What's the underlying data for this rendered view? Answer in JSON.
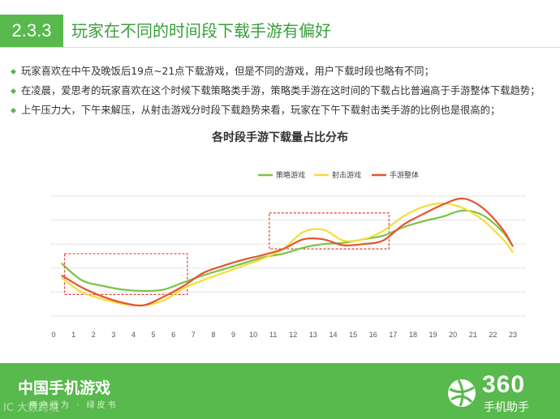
{
  "header": {
    "section_number": "2.3.3",
    "title": "玩家在不同的时间段下载手游有偏好"
  },
  "bullets": [
    "玩家喜欢在中午及晚饭后19点~21点下载游戏，但是不同的游戏，用户下载时段也略有不同；",
    "在凌晨，爱思考的玩家喜欢在这个时候下载策略类手游，策略类手游在这时间的下载占比普遍高于手游整体下载趋势；",
    "上午压力大，下午来解压，从射击游戏分时段下载趋势来看，玩家在下午下载射击类手游的比例也是很高的；"
  ],
  "chart_data": {
    "type": "line",
    "title": "各时段手游下载量占比分布",
    "x": [
      0,
      1,
      2,
      3,
      4,
      5,
      6,
      7,
      8,
      9,
      10,
      11,
      12,
      13,
      14,
      15,
      16,
      17,
      18,
      19,
      20,
      21,
      22,
      23
    ],
    "x_tick_labels": [
      "0",
      "1",
      "2",
      "3",
      "4",
      "5",
      "6",
      "7",
      "8",
      "9",
      "10",
      "11",
      "12",
      "13",
      "14",
      "15",
      "16",
      "17",
      "18",
      "19",
      "20",
      "21",
      "22",
      "23"
    ],
    "ylim": [
      0,
      100
    ],
    "grid": true,
    "legend_position": "top-right",
    "line_x_range": [
      0.4,
      23.0
    ],
    "series": [
      {
        "name": "策略游戏",
        "color": "#7cc243",
        "x": [
          0.4,
          1.4,
          2.5,
          3.5,
          4.5,
          5.5,
          6.5,
          7.5,
          8.5,
          9.5,
          10.5,
          11.5,
          12.5,
          13.5,
          14.5,
          15.5,
          16.5,
          17.5,
          18.5,
          19.5,
          20.5,
          21.5,
          22.5,
          23.0
        ],
        "values": [
          44,
          30,
          25,
          22,
          21,
          22,
          28,
          34,
          39,
          44,
          49,
          52,
          57,
          60,
          61,
          64,
          67,
          74,
          79,
          83,
          88,
          84,
          70,
          58
        ]
      },
      {
        "name": "射击游戏",
        "color": "#f2de3a",
        "x": [
          0.4,
          1.4,
          2.5,
          3.5,
          4.5,
          5.5,
          6.5,
          7.5,
          8.5,
          9.5,
          10.5,
          11.5,
          12.5,
          13.5,
          14.5,
          15.5,
          16.5,
          17.5,
          18.5,
          19.5,
          20.5,
          21.5,
          22.5,
          23.0
        ],
        "values": [
          32,
          20,
          14,
          10,
          9,
          13,
          23,
          30,
          36,
          42,
          48,
          56,
          70,
          72,
          63,
          64,
          71,
          83,
          91,
          94,
          90,
          80,
          64,
          53
        ]
      },
      {
        "name": "手游整体",
        "color": "#e8542f",
        "x": [
          0.4,
          1.4,
          2.5,
          3.5,
          4.5,
          5.5,
          6.5,
          7.5,
          8.5,
          9.5,
          10.5,
          11.5,
          12.5,
          13.5,
          14.5,
          15.5,
          16.5,
          17.5,
          18.5,
          19.5,
          20.5,
          21.5,
          22.5,
          23.0
        ],
        "values": [
          34,
          24,
          16,
          11,
          9,
          16,
          25,
          36,
          42,
          47,
          51,
          56,
          64,
          64,
          59,
          60,
          63,
          76,
          85,
          93,
          98,
          90,
          72,
          58
        ]
      }
    ],
    "highlight_ranges": [
      {
        "x_range": [
          0.55,
          6.7
        ],
        "y_range": [
          18,
          52
        ]
      },
      {
        "x_range": [
          10.8,
          16.8
        ],
        "y_range": [
          56,
          86
        ]
      }
    ]
  },
  "footer": {
    "title": "中国手机游戏",
    "subtitle": "用户行为 · 绿皮书",
    "watermark": "IC 大数跨境",
    "logo_number": "360",
    "logo_text": "手机助手"
  },
  "colors": {
    "accent": "#58b94c",
    "title_green": "#3a9f3c",
    "highlight_box": "#e0413d",
    "grid": "#e4e4e4"
  }
}
